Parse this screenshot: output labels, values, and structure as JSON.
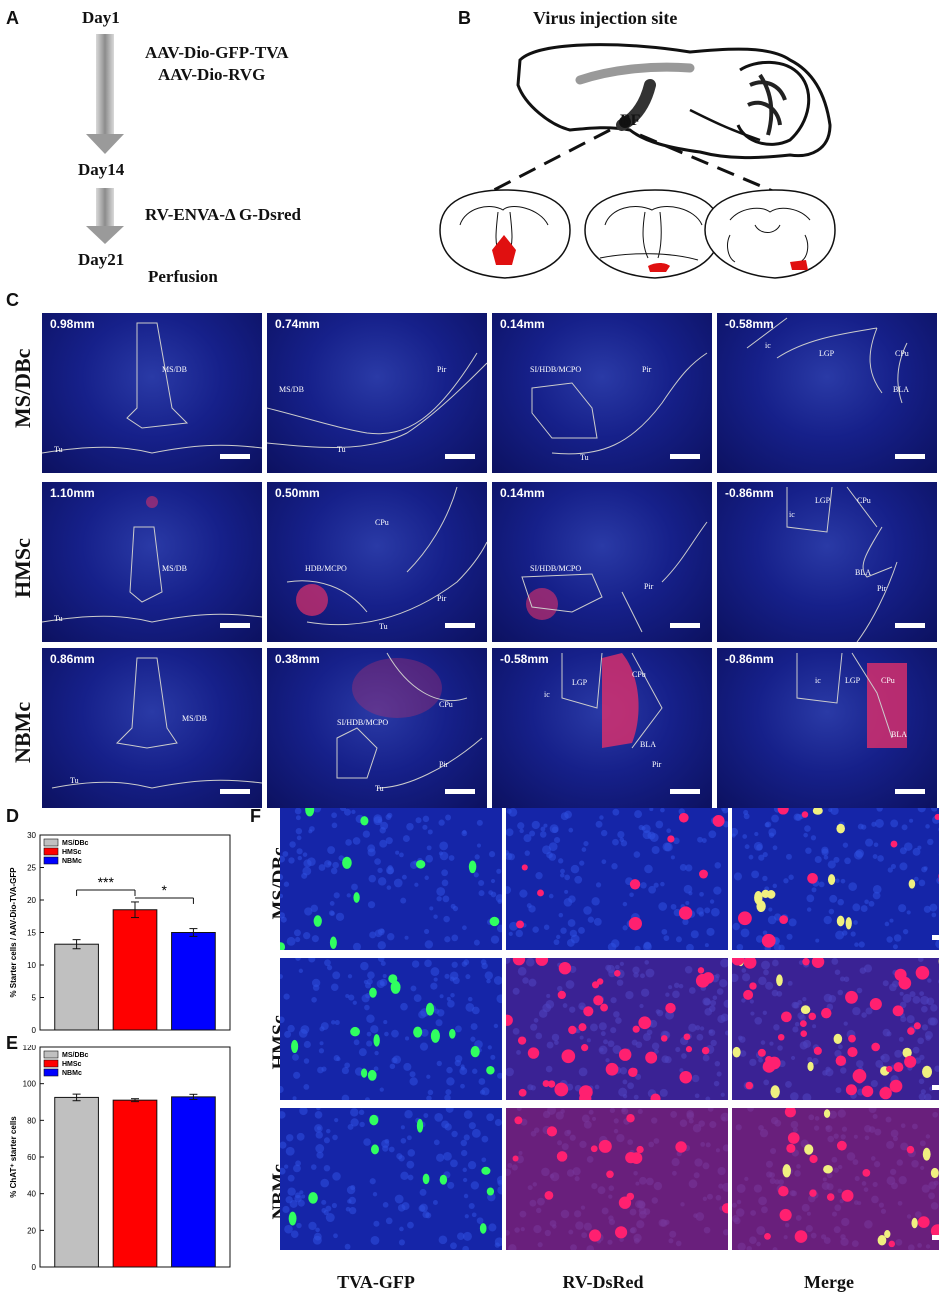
{
  "panel_letters": {
    "a": "A",
    "b": "B",
    "c": "C",
    "d": "D",
    "e": "E",
    "f": "F"
  },
  "timeline": {
    "day1": "Day1",
    "virus1": "AAV-Dio-GFP-TVA",
    "virus2": "AAV-Dio-RVG",
    "day14": "Day14",
    "virus3": "RV-ENVA-Δ G-Dsred",
    "day21": "Day21",
    "perfusion": "Perfusion"
  },
  "injection": {
    "title": "Virus injection site",
    "bf_label": "BF"
  },
  "sections": {
    "rows": [
      {
        "label": "MS/DBc",
        "panels": [
          {
            "depth": "0.98mm",
            "regions": [
              "MS/DB",
              "Tu"
            ]
          },
          {
            "depth": "0.74mm",
            "regions": [
              "MS/DB",
              "Pir",
              "Tu"
            ]
          },
          {
            "depth": "0.14mm",
            "regions": [
              "SI/HDB/MCPO",
              "Pir",
              "Tu"
            ]
          },
          {
            "depth": "-0.58mm",
            "regions": [
              "ic",
              "LGP",
              "CPu",
              "BLA"
            ]
          }
        ]
      },
      {
        "label": "HMSc",
        "panels": [
          {
            "depth": "1.10mm",
            "regions": [
              "MS/DB",
              "Tu"
            ]
          },
          {
            "depth": "0.50mm",
            "regions": [
              "CPu",
              "HDB/MCPO",
              "Pir",
              "Tu"
            ]
          },
          {
            "depth": "0.14mm",
            "regions": [
              "SI/HDB/MCPO",
              "Pir"
            ]
          },
          {
            "depth": "-0.86mm",
            "regions": [
              "ic",
              "LGP",
              "CPu",
              "BLA",
              "Pir"
            ]
          }
        ]
      },
      {
        "label": "NBMc",
        "panels": [
          {
            "depth": "0.86mm",
            "regions": [
              "MS/DB",
              "Tu"
            ]
          },
          {
            "depth": "0.38mm",
            "regions": [
              "CPu",
              "SI/HDB/MCPO",
              "Pir",
              "Tu"
            ]
          },
          {
            "depth": "-0.58mm",
            "regions": [
              "ic",
              "LGP",
              "CPu",
              "BLA",
              "Pir"
            ]
          },
          {
            "depth": "-0.86mm",
            "regions": [
              "ic",
              "LGP",
              "CPu",
              "BLA"
            ]
          }
        ]
      }
    ]
  },
  "chart_data": [
    {
      "type": "bar",
      "panel": "D",
      "categories": [
        "MS/DBc",
        "HMSc",
        "NBMc"
      ],
      "values": [
        13.2,
        18.5,
        15.0
      ],
      "errors": [
        0.7,
        1.2,
        0.6
      ],
      "colors": [
        "#c0c0c0",
        "#ff0000",
        "#0000ff"
      ],
      "ylabel": "% Starter cells / AAV-Dio-TVA-GFP",
      "ylim": [
        0,
        30
      ],
      "yticks": [
        "0",
        "5",
        "10",
        "15",
        "20",
        "25",
        "30"
      ],
      "legend": [
        "MS/DBc",
        "HMSc",
        "NBMc"
      ],
      "legend_position": "top-left",
      "significance": [
        "***",
        "*"
      ]
    },
    {
      "type": "bar",
      "panel": "E",
      "categories": [
        "MS/DBc",
        "HMSc",
        "NBMc"
      ],
      "values": [
        92.5,
        91.0,
        92.8
      ],
      "errors": [
        1.8,
        0.8,
        1.4
      ],
      "colors": [
        "#c0c0c0",
        "#ff0000",
        "#0000ff"
      ],
      "ylabel": "% ChAT⁺ starter cells",
      "ylim": [
        0,
        120
      ],
      "yticks": [
        "0",
        "20",
        "40",
        "60",
        "80",
        "100",
        "120"
      ],
      "legend": [
        "MS/DBc",
        "HMSc",
        "NBMc"
      ],
      "legend_position": "top-left"
    }
  ],
  "fluor": {
    "rows": [
      "MS/DBc",
      "HMSc",
      "NBMc"
    ],
    "cols": [
      "TVA-GFP",
      "RV-DsRed",
      "Merge"
    ]
  }
}
